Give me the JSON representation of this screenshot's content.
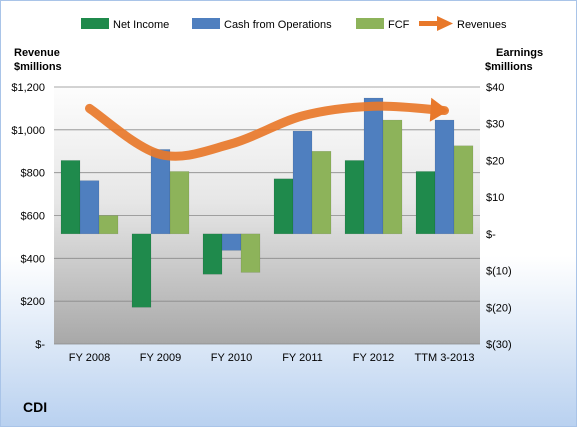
{
  "company": "CDI",
  "colors": {
    "net_income": "#1f8a4c",
    "cash_from_operations": "#4f7fbf",
    "fcf": "#8db35a",
    "revenues": "#e8782a"
  },
  "chart_data": {
    "type": "bar",
    "categories": [
      "FY 2008",
      "FY 2009",
      "FY 2010",
      "FY 2011",
      "FY 2012",
      "TTM 3-2013"
    ],
    "series": [
      {
        "name": "Net Income",
        "axis": "right",
        "values": [
          20,
          -20,
          -11,
          15,
          20,
          17
        ]
      },
      {
        "name": "Cash from Operations",
        "axis": "right",
        "values": [
          14.5,
          23,
          -4.5,
          28,
          37,
          31
        ]
      },
      {
        "name": "FCF",
        "axis": "right",
        "values": [
          5,
          17,
          -10.5,
          22.5,
          31,
          24
        ]
      },
      {
        "name": "Revenues",
        "axis": "left",
        "type": "line",
        "values": [
          1100,
          885,
          935,
          1065,
          1110,
          1090
        ]
      }
    ],
    "left_axis": {
      "title": "Revenue $millions",
      "title_lines": [
        "Revenue",
        "$millions"
      ],
      "ylim": [
        0,
        1200
      ],
      "ticks": [
        1200,
        1000,
        800,
        600,
        400,
        200,
        0
      ],
      "tick_labels": [
        "$1,200",
        "$1,000",
        "$800",
        "$600",
        "$400",
        "$200",
        "$-"
      ]
    },
    "right_axis": {
      "title": "Earnings $millions",
      "title_lines": [
        "Earnings",
        "$millions"
      ],
      "ylim": [
        -30,
        40
      ],
      "ticks": [
        40,
        30,
        20,
        10,
        0,
        -10,
        -20,
        -30
      ],
      "tick_labels": [
        "$40",
        "$30",
        "$20",
        "$10",
        "$-",
        "$(10)",
        "$(20)",
        "$(30)"
      ]
    },
    "legend": {
      "position": "top",
      "entries": [
        "Net Income",
        "Cash from Operations",
        "FCF",
        "Revenues"
      ]
    },
    "grid": true
  }
}
